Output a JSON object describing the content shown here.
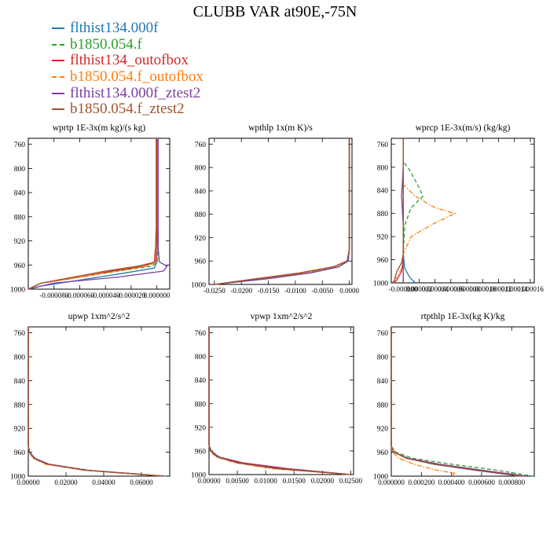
{
  "title": "CLUBB VAR at90E,-75N",
  "legend": [
    {
      "name": "flthist134.000f",
      "color": "#1f77b4",
      "dash": "solid"
    },
    {
      "name": "b1850.054.f",
      "color": "#2ca02c",
      "dash": "dashed"
    },
    {
      "name": "flthist134_outofbox",
      "color": "#d62728",
      "dash": "solid"
    },
    {
      "name": "b1850.054.f_outofbox",
      "color": "#ff7f0e",
      "dash": "dashdot"
    },
    {
      "name": "flthist134.000f_ztest2",
      "color": "#7b3f9e",
      "dash": "solid"
    },
    {
      "name": "b1850.054.f_ztest2",
      "color": "#a0522d",
      "dash": "solid"
    }
  ],
  "chart_data": [
    {
      "type": "line",
      "title": "wprtp   1E-3x(m kg)/(s kg)",
      "xlim": [
        -0.0001,
        1e-05
      ],
      "ylim": [
        1000,
        750
      ],
      "xticks": [
        -8e-05,
        -6e-05,
        -4e-05,
        -2e-05,
        0.0
      ],
      "xtick_labels": [
        "-0.000080",
        "-0.000060",
        "-0.000040",
        "-0.000020",
        "0.000000"
      ],
      "yticks": [
        760,
        800,
        840,
        880,
        920,
        960,
        1000
      ],
      "series": [
        {
          "y": [
            750,
            800,
            850,
            900,
            930,
            955,
            965,
            975,
            985,
            995,
            1000
          ],
          "x": [
            0,
            0,
            0,
            0,
            0,
            0,
            -2e-06,
            -3e-05,
            -6e-05,
            -9e-05,
            -0.0001
          ]
        },
        {
          "y": [
            750,
            800,
            850,
            900,
            930,
            955,
            962,
            970,
            980,
            990,
            1000
          ],
          "x": [
            1e-06,
            1e-06,
            1e-06,
            1e-06,
            1e-06,
            5e-07,
            -4e-06,
            -3e-05,
            -6e-05,
            -9e-05,
            -0.0001
          ]
        },
        {
          "y": [
            750,
            800,
            850,
            900,
            930,
            955,
            962,
            970,
            980,
            990,
            1000
          ],
          "x": [
            -5e-07,
            -5e-07,
            -5e-07,
            -5e-07,
            -1e-06,
            -2e-06,
            -1e-05,
            -3.5e-05,
            -6e-05,
            -9e-05,
            -0.0001
          ]
        },
        {
          "y": [
            750,
            800,
            850,
            900,
            930,
            955,
            962,
            970,
            980,
            990,
            1000
          ],
          "x": [
            5e-07,
            5e-07,
            5e-07,
            5e-07,
            5e-07,
            0,
            -8e-06,
            -3e-05,
            -6e-05,
            -9e-05,
            -0.0001
          ]
        },
        {
          "y": [
            750,
            800,
            850,
            900,
            930,
            955,
            962,
            970,
            980,
            990,
            1000
          ],
          "x": [
            1e-06,
            1e-06,
            1e-06,
            1e-06,
            1e-06,
            2e-06,
            8e-06,
            5e-06,
            -3e-05,
            -8e-05,
            -0.0001
          ]
        },
        {
          "y": [
            750,
            800,
            850,
            900,
            930,
            955,
            962,
            970,
            980,
            990,
            1000
          ],
          "x": [
            0,
            0,
            0,
            0,
            0,
            -1e-06,
            -1.5e-05,
            -4e-05,
            -6.5e-05,
            -9e-05,
            -0.0001
          ]
        }
      ]
    },
    {
      "type": "line",
      "title": "wpthlp   1x(m K)/s",
      "xlim": [
        -0.026,
        0.0005
      ],
      "ylim": [
        1000,
        750
      ],
      "xticks": [
        -0.025,
        -0.02,
        -0.015,
        -0.01,
        -0.005,
        0.0
      ],
      "xtick_labels": [
        "-0.0250",
        "-0.0200",
        "-0.0150",
        "-0.0100",
        "-0.0050",
        "0.0000"
      ],
      "yticks": [
        760,
        800,
        840,
        880,
        920,
        960,
        1000
      ],
      "series": [
        {
          "y": [
            750,
            850,
            940,
            960,
            970,
            980,
            990,
            1000
          ],
          "x": [
            0,
            0,
            0,
            -0.0002,
            -0.002,
            -0.007,
            -0.015,
            -0.025
          ]
        },
        {
          "y": [
            750,
            850,
            940,
            960,
            970,
            980,
            990,
            1000
          ],
          "x": [
            0,
            0,
            0,
            -0.0003,
            -0.003,
            -0.008,
            -0.016,
            -0.025
          ]
        },
        {
          "y": [
            750,
            850,
            940,
            960,
            970,
            980,
            990,
            1000
          ],
          "x": [
            0,
            0,
            0,
            -0.0004,
            -0.003,
            -0.009,
            -0.017,
            -0.025
          ]
        },
        {
          "y": [
            750,
            850,
            940,
            960,
            970,
            980,
            990,
            1000
          ],
          "x": [
            0,
            0,
            0,
            -0.0003,
            -0.0025,
            -0.008,
            -0.016,
            -0.025
          ]
        },
        {
          "y": [
            750,
            850,
            940,
            960,
            970,
            980,
            990,
            1000
          ],
          "x": [
            0,
            0,
            0,
            -0.0002,
            -0.002,
            -0.007,
            -0.015,
            -0.025
          ]
        },
        {
          "y": [
            750,
            850,
            940,
            960,
            970,
            980,
            990,
            1000
          ],
          "x": [
            0,
            0,
            0,
            -0.0004,
            -0.003,
            -0.009,
            -0.017,
            -0.025
          ]
        }
      ]
    },
    {
      "type": "line",
      "title": "wprcp   1E-3x(m/s) (kg/kg)",
      "xlim": [
        -1.5e-06,
        1.65e-05
      ],
      "ylim": [
        1000,
        750
      ],
      "xticks": [
        0.0,
        2e-06,
        4e-06,
        6e-06,
        8e-06,
        1e-05,
        1.2e-05,
        1.4e-05,
        1.6e-05
      ],
      "xtick_labels": [
        "-0.000000",
        "0.000002",
        "0.000004",
        "0.000006",
        "0.000008",
        "0.000010",
        "0.000012",
        "0.000014",
        "0.000016"
      ],
      "yticks": [
        760,
        800,
        840,
        880,
        920,
        960,
        1000
      ],
      "series": [
        {
          "y": [
            750,
            800,
            850,
            900,
            950,
            975,
            990,
            1000
          ],
          "x": [
            0,
            0,
            0,
            0,
            0,
            2e-07,
            8e-07,
            1.5e-06
          ]
        },
        {
          "y": [
            750,
            790,
            805,
            830,
            850,
            870,
            900,
            950,
            980,
            1000
          ],
          "x": [
            0,
            0,
            8e-07,
            1.8e-06,
            2.5e-06,
            1e-06,
            2e-07,
            0,
            0,
            0
          ]
        },
        {
          "y": [
            750,
            800,
            850,
            900,
            960,
            980,
            995,
            1000
          ],
          "x": [
            0,
            0,
            0,
            0,
            0,
            -2e-07,
            -8e-07,
            -1.2e-06
          ]
        },
        {
          "y": [
            750,
            800,
            830,
            850,
            870,
            880,
            900,
            920,
            950,
            975,
            990,
            1000
          ],
          "x": [
            0,
            0,
            0,
            1.5e-06,
            4e-06,
            6.5e-06,
            3.5e-06,
            1e-06,
            0,
            -2e-07,
            -8e-07,
            -1.4e-06
          ]
        },
        {
          "y": [
            750,
            800,
            850,
            900,
            950,
            980,
            1000
          ],
          "x": [
            0,
            0,
            -2e-07,
            0,
            0,
            0,
            0
          ]
        },
        {
          "y": [
            750,
            800,
            850,
            900,
            950,
            965,
            980,
            990,
            1000
          ],
          "x": [
            0,
            0,
            0,
            0,
            0,
            -2e-07,
            -8e-07,
            -1e-06,
            -1.2e-06
          ]
        }
      ]
    },
    {
      "type": "line",
      "title": "upwp   1xm^2/s^2",
      "xlim": [
        0.0,
        0.075
      ],
      "ylim": [
        1000,
        750
      ],
      "xticks": [
        0.0,
        0.02,
        0.04,
        0.06
      ],
      "xtick_labels": [
        "0.00000",
        "0.02000",
        "0.04000",
        "0.06000"
      ],
      "yticks": [
        760,
        800,
        840,
        880,
        920,
        960,
        1000
      ],
      "series": [
        {
          "y": [
            750,
            900,
            950,
            960,
            970,
            980,
            990,
            1000
          ],
          "x": [
            0,
            0,
            0,
            0.0006,
            0.003,
            0.01,
            0.03,
            0.072
          ]
        },
        {
          "y": [
            750,
            900,
            950,
            960,
            970,
            980,
            990,
            1000
          ],
          "x": [
            0,
            0,
            0,
            0.0008,
            0.0035,
            0.011,
            0.032,
            0.073
          ]
        },
        {
          "y": [
            750,
            900,
            950,
            960,
            970,
            980,
            990,
            1000
          ],
          "x": [
            0,
            0,
            0,
            0.0007,
            0.003,
            0.01,
            0.03,
            0.072
          ]
        },
        {
          "y": [
            750,
            900,
            950,
            960,
            970,
            980,
            990,
            1000
          ],
          "x": [
            0,
            0,
            0,
            0.0005,
            0.0025,
            0.009,
            0.029,
            0.071
          ]
        },
        {
          "y": [
            750,
            900,
            950,
            960,
            970,
            980,
            990,
            1000
          ],
          "x": [
            0,
            0,
            0,
            0.0008,
            0.0035,
            0.011,
            0.031,
            0.072
          ]
        },
        {
          "y": [
            750,
            900,
            950,
            960,
            970,
            980,
            990,
            1000
          ],
          "x": [
            0,
            0,
            0,
            0.0006,
            0.003,
            0.01,
            0.03,
            0.071
          ]
        }
      ]
    },
    {
      "type": "line",
      "title": "vpwp   1xm^2/s^2",
      "xlim": [
        0.0,
        0.0255
      ],
      "ylim": [
        1000,
        750
      ],
      "xticks": [
        0.0,
        0.005,
        0.01,
        0.015,
        0.02,
        0.025
      ],
      "xtick_labels": [
        "0.00000",
        "0.00500",
        "0.01000",
        "0.01500",
        "0.02000",
        "0.02500"
      ],
      "yticks": [
        760,
        800,
        840,
        880,
        920,
        960,
        1000
      ],
      "series": [
        {
          "y": [
            750,
            900,
            950,
            960,
            970,
            980,
            990,
            1000
          ],
          "x": [
            0,
            0,
            0,
            0.0003,
            0.0015,
            0.005,
            0.012,
            0.025
          ]
        },
        {
          "y": [
            750,
            900,
            950,
            960,
            970,
            980,
            990,
            1000
          ],
          "x": [
            0,
            0,
            0,
            0.0004,
            0.0018,
            0.0055,
            0.013,
            0.025
          ]
        },
        {
          "y": [
            750,
            900,
            950,
            960,
            970,
            980,
            990,
            1000
          ],
          "x": [
            0,
            0,
            0,
            0.0003,
            0.0016,
            0.006,
            0.014,
            0.025
          ]
        },
        {
          "y": [
            750,
            900,
            950,
            960,
            970,
            980,
            990,
            1000
          ],
          "x": [
            0,
            0,
            0,
            0.0002,
            0.0012,
            0.0045,
            0.011,
            0.025
          ]
        },
        {
          "y": [
            750,
            900,
            950,
            960,
            970,
            980,
            990,
            1000
          ],
          "x": [
            0,
            0,
            0,
            0.0004,
            0.0017,
            0.0055,
            0.013,
            0.025
          ]
        },
        {
          "y": [
            750,
            900,
            950,
            960,
            970,
            980,
            990,
            1000
          ],
          "x": [
            0,
            0,
            0,
            0.0003,
            0.0014,
            0.005,
            0.012,
            0.025
          ]
        }
      ]
    },
    {
      "type": "line",
      "title": "rtpthlp   1E-3x(kg K)/kg",
      "xlim": [
        0.0,
        0.00095
      ],
      "ylim": [
        1000,
        750
      ],
      "xticks": [
        0.0,
        0.0002,
        0.0004,
        0.0006,
        0.0008
      ],
      "xtick_labels": [
        "0.000000",
        "0.000200",
        "0.000400",
        "0.000600",
        "0.000800"
      ],
      "yticks": [
        760,
        800,
        840,
        880,
        920,
        960,
        1000
      ],
      "series": [
        {
          "y": [
            750,
            900,
            950,
            960,
            970,
            980,
            990,
            1000
          ],
          "x": [
            0,
            0,
            0,
            2e-05,
            0.0001,
            0.00028,
            0.00055,
            0.00085
          ]
        },
        {
          "y": [
            750,
            900,
            950,
            960,
            970,
            980,
            990,
            1000
          ],
          "x": [
            0,
            0,
            0,
            3e-05,
            0.00014,
            0.0004,
            0.0007,
            0.00094
          ]
        },
        {
          "y": [
            750,
            900,
            950,
            960,
            970,
            980,
            990,
            1000
          ],
          "x": [
            0,
            0,
            0,
            2e-05,
            0.0001,
            0.0003,
            0.0006,
            0.00088
          ]
        },
        {
          "y": [
            750,
            900,
            950,
            960,
            970,
            980,
            990,
            995,
            1000
          ],
          "x": [
            0,
            0,
            0,
            1e-05,
            5e-05,
            0.00015,
            0.0003,
            0.00042,
            0.0004
          ]
        },
        {
          "y": [
            750,
            900,
            950,
            960,
            970,
            980,
            990,
            1000
          ],
          "x": [
            0,
            0,
            0,
            2e-05,
            0.00011,
            0.00032,
            0.0006,
            0.0009
          ]
        },
        {
          "y": [
            750,
            900,
            950,
            960,
            970,
            980,
            990,
            1000
          ],
          "x": [
            0,
            0,
            0,
            2e-05,
            0.0001,
            0.00029,
            0.00056,
            0.00086
          ]
        }
      ]
    }
  ]
}
